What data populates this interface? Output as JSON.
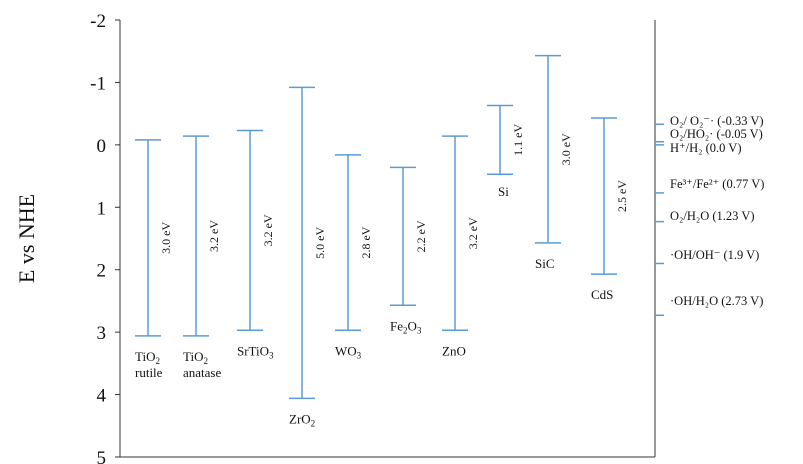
{
  "chart_data": {
    "type": "band_diagram",
    "ylabel": "E vs NHE",
    "ylim": [
      -2,
      5
    ],
    "y_inverted": true,
    "y_ticks": [
      -2,
      -1,
      0,
      1,
      2,
      3,
      4,
      5
    ],
    "y_tick_labels": [
      "-2",
      "-1",
      "0",
      "1",
      "2",
      "3",
      "4",
      "5"
    ],
    "band_color": "#5b9bd5",
    "materials": [
      {
        "name": "TiO",
        "sub": "2",
        "name2": "rutile",
        "cb": -0.08,
        "vb": 3.06,
        "gap": "3.0 eV"
      },
      {
        "name": "TiO",
        "sub": "2",
        "name2": "anatase",
        "cb": -0.14,
        "vb": 3.06,
        "gap": "3.2 eV"
      },
      {
        "name": "SrTiO",
        "sub": "3",
        "name2": "",
        "cb": -0.23,
        "vb": 2.97,
        "gap": "3.2 eV"
      },
      {
        "name": "ZrO",
        "sub": "2",
        "name2": "",
        "cb": -0.92,
        "vb": 4.06,
        "gap": "5.0 eV"
      },
      {
        "name": "WO",
        "sub": "3",
        "name2": "",
        "cb": 0.16,
        "vb": 2.97,
        "gap": "2.8 eV"
      },
      {
        "name": "Fe",
        "sub": "2",
        "name_tail": "O",
        "sub2": "3",
        "name2": "",
        "cb": 0.36,
        "vb": 2.57,
        "gap": "2.2 eV"
      },
      {
        "name": "ZnO",
        "sub": "",
        "name2": "",
        "cb": -0.14,
        "vb": 2.97,
        "gap": "3.2 eV"
      },
      {
        "name": "Si",
        "sub": "",
        "name2": "",
        "cb": -0.63,
        "vb": 0.47,
        "gap": "1.1 eV"
      },
      {
        "name": "SiC",
        "sub": "",
        "name2": "",
        "cb": -1.43,
        "vb": 1.57,
        "gap": "3.0 eV"
      },
      {
        "name": "CdS",
        "sub": "",
        "name2": "",
        "cb": -0.43,
        "vb": 2.07,
        "gap": "2.5 eV"
      }
    ],
    "redox": [
      {
        "label": "O₂/ O₂⁻· (-0.33 V)",
        "value": -0.33
      },
      {
        "label": "O₂/HO₂· (-0.05 V)",
        "value": -0.05
      },
      {
        "label": "H⁺/H₂ (0.0 V)",
        "value": 0.0
      },
      {
        "label": "Fe³⁺/Fe²⁺ (0.77 V)",
        "value": 0.77
      },
      {
        "label": "O₂/H₂O (1.23 V)",
        "value": 1.23
      },
      {
        "label": "·OH/OH⁻ (1.9 V)",
        "value": 1.9
      },
      {
        "label": "·OH/H₂O (2.73 V)",
        "value": 2.73
      }
    ]
  }
}
